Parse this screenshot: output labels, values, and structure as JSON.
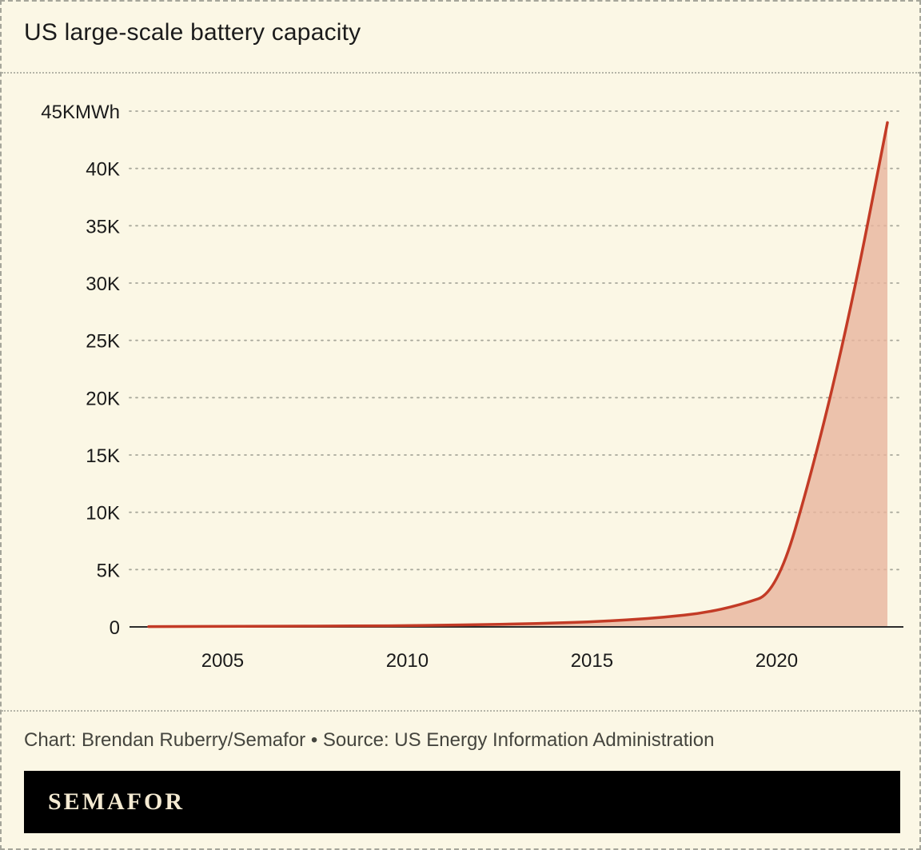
{
  "title": "US large-scale battery capacity",
  "credit": "Chart: Brendan Ruberry/Semafor • Source: US Energy Information Administration",
  "logo": "SEMAFOR",
  "colors": {
    "background": "#fbf7e5",
    "frame_border": "#a5a59a",
    "rule": "#b5b5a8",
    "grid": "#a9a99c",
    "text": "#1b1b1b",
    "line": "#c33b26",
    "fill": "#e9b49e",
    "footer_bg": "#000000",
    "footer_text": "#f4ead2"
  },
  "chart_data": {
    "type": "area",
    "title": "US large-scale battery capacity",
    "xlabel": "",
    "ylabel": "MWh",
    "x": [
      2003,
      2004,
      2005,
      2006,
      2007,
      2008,
      2009,
      2010,
      2011,
      2012,
      2013,
      2014,
      2015,
      2016,
      2017,
      2018,
      2019,
      2020,
      2021,
      2022,
      2023
    ],
    "values": [
      30,
      35,
      45,
      55,
      65,
      75,
      90,
      110,
      150,
      200,
      260,
      340,
      440,
      620,
      850,
      1200,
      1900,
      3000,
      14000,
      27500,
      44000
    ],
    "xlim": [
      2003,
      2023
    ],
    "ylim": [
      0,
      45000
    ],
    "y_ticks": [
      {
        "value": 0,
        "label": "0"
      },
      {
        "value": 5000,
        "label": "5K"
      },
      {
        "value": 10000,
        "label": "10K"
      },
      {
        "value": 15000,
        "label": "15K"
      },
      {
        "value": 20000,
        "label": "20K"
      },
      {
        "value": 25000,
        "label": "25K"
      },
      {
        "value": 30000,
        "label": "30K"
      },
      {
        "value": 35000,
        "label": "35K"
      },
      {
        "value": 40000,
        "label": "40K"
      },
      {
        "value": 45000,
        "label": "45KMWh"
      }
    ],
    "x_ticks": [
      {
        "value": 2005,
        "label": "2005"
      },
      {
        "value": 2010,
        "label": "2010"
      },
      {
        "value": 2015,
        "label": "2015"
      },
      {
        "value": 2020,
        "label": "2020"
      }
    ],
    "grid": "horizontal-dashed",
    "legend": "none"
  }
}
